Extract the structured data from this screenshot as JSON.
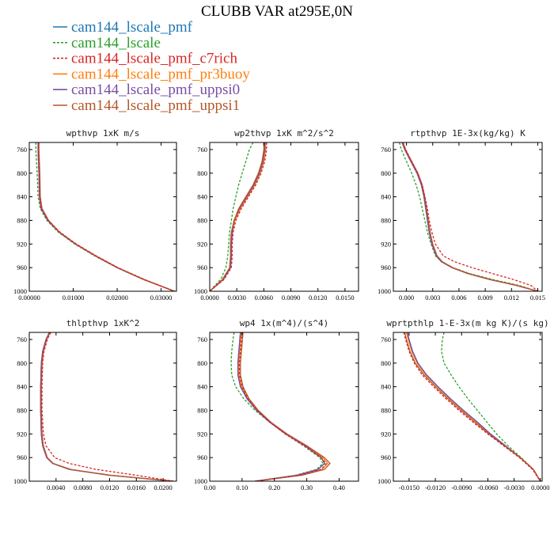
{
  "title": "CLUBB VAR at295E,0N",
  "legend": [
    {
      "label": "cam144_lscale_pmf",
      "color": "#1f77b4",
      "dash": false
    },
    {
      "label": "cam144_lscale",
      "color": "#2ca02c",
      "dash": true
    },
    {
      "label": "cam144_lscale_pmf_c7rich",
      "color": "#d62728",
      "dash": true
    },
    {
      "label": "cam144_lscale_pmf_pr3buoy",
      "color": "#ff7f0e",
      "dash": false
    },
    {
      "label": "cam144_lscale_pmf_uppsi0",
      "color": "#7b4ea3",
      "dash": false
    },
    {
      "label": "cam144_lscale_pmf_uppsi1",
      "color": "#b5572a",
      "dash": false
    }
  ],
  "chart_data": [
    {
      "type": "line",
      "title": "wpthvp  1xK m/s",
      "xlim": [
        0,
        0.0335
      ],
      "ylim": [
        1000,
        748
      ],
      "x_ticks": [
        "0.00000",
        "0.01000",
        "0.02000",
        "0.03000"
      ],
      "x_tick_values": [
        0,
        0.01,
        0.02,
        0.03
      ],
      "y_ticks": [
        "760",
        "800",
        "840",
        "880",
        "920",
        "960",
        "1000"
      ],
      "y_tick_values": [
        760,
        800,
        840,
        880,
        920,
        960,
        1000
      ],
      "y": [
        748,
        760,
        800,
        840,
        860,
        880,
        900,
        920,
        940,
        960,
        980,
        1000
      ],
      "series": [
        {
          "x": [
            0.002,
            0.002,
            0.0022,
            0.0023,
            0.0027,
            0.0042,
            0.0068,
            0.0105,
            0.015,
            0.02,
            0.026,
            0.033
          ]
        },
        {
          "x": [
            0.0015,
            0.0015,
            0.0018,
            0.002,
            0.0025,
            0.004,
            0.0066,
            0.0103,
            0.0148,
            0.0199,
            0.0259,
            0.0332
          ]
        },
        {
          "x": [
            0.0021,
            0.0021,
            0.0023,
            0.0024,
            0.0028,
            0.0043,
            0.007,
            0.0107,
            0.0152,
            0.0202,
            0.0262,
            0.033
          ]
        },
        {
          "x": [
            0.002,
            0.002,
            0.0022,
            0.0023,
            0.0027,
            0.0042,
            0.0068,
            0.0105,
            0.015,
            0.02,
            0.026,
            0.033
          ]
        },
        {
          "x": [
            0.002,
            0.002,
            0.0022,
            0.0023,
            0.0027,
            0.0042,
            0.0068,
            0.0105,
            0.015,
            0.02,
            0.026,
            0.033
          ]
        },
        {
          "x": [
            0.0022,
            0.0022,
            0.0024,
            0.0025,
            0.0029,
            0.0044,
            0.0069,
            0.0106,
            0.0151,
            0.0201,
            0.0261,
            0.033
          ]
        }
      ]
    },
    {
      "type": "line",
      "title": "wp2thvp  1xK m^2/s^2",
      "xlim": [
        0,
        0.0165
      ],
      "ylim": [
        1000,
        748
      ],
      "x_ticks": [
        "0.0000",
        "0.0030",
        "0.0060",
        "0.0090",
        "0.0120",
        "0.0150"
      ],
      "x_tick_values": [
        0,
        0.003,
        0.006,
        0.009,
        0.012,
        0.015
      ],
      "y_ticks": [
        "760",
        "800",
        "840",
        "880",
        "920",
        "960",
        "1000"
      ],
      "y_tick_values": [
        760,
        800,
        840,
        880,
        920,
        960,
        1000
      ],
      "y": [
        748,
        760,
        780,
        800,
        820,
        840,
        860,
        880,
        900,
        920,
        940,
        960,
        980,
        1000
      ],
      "series": [
        {
          "x": [
            0.0061,
            0.0061,
            0.0059,
            0.0055,
            0.0049,
            0.0041,
            0.0033,
            0.0027,
            0.0025,
            0.0024,
            0.0024,
            0.0023,
            0.0015,
            0.0
          ]
        },
        {
          "x": [
            0.0048,
            0.0044,
            0.004,
            0.0036,
            0.0032,
            0.0029,
            0.0026,
            0.0024,
            0.0022,
            0.0021,
            0.002,
            0.0018,
            0.0012,
            0.0
          ]
        },
        {
          "x": [
            0.0063,
            0.0063,
            0.0061,
            0.0057,
            0.0051,
            0.0043,
            0.0035,
            0.0029,
            0.0026,
            0.0025,
            0.0025,
            0.0024,
            0.0016,
            0.0
          ]
        },
        {
          "x": [
            0.0062,
            0.0062,
            0.006,
            0.0056,
            0.005,
            0.0042,
            0.0034,
            0.0028,
            0.0025,
            0.0024,
            0.0024,
            0.0023,
            0.0015,
            0.0
          ]
        },
        {
          "x": [
            0.0061,
            0.0061,
            0.0059,
            0.0055,
            0.0049,
            0.0041,
            0.0033,
            0.0027,
            0.0025,
            0.0024,
            0.0024,
            0.0023,
            0.0015,
            0.0
          ]
        },
        {
          "x": [
            0.006,
            0.006,
            0.0058,
            0.0054,
            0.0048,
            0.004,
            0.0032,
            0.0027,
            0.0024,
            0.0023,
            0.0023,
            0.0022,
            0.0014,
            0.0
          ]
        }
      ]
    },
    {
      "type": "line",
      "title": "rtpthvp  1E-3x(kg/kg) K",
      "xlim": [
        -0.0015,
        0.0155
      ],
      "ylim": [
        1000,
        748
      ],
      "x_ticks": [
        "0.000",
        "0.003",
        "0.006",
        "0.009",
        "0.012",
        "0.015"
      ],
      "x_tick_values": [
        0,
        0.003,
        0.006,
        0.009,
        0.012,
        0.015
      ],
      "y_ticks": [
        "760",
        "800",
        "840",
        "880",
        "920",
        "960",
        "1000"
      ],
      "y_tick_values": [
        760,
        800,
        840,
        880,
        920,
        960,
        1000
      ],
      "y": [
        748,
        760,
        780,
        800,
        820,
        840,
        860,
        880,
        900,
        920,
        940,
        950,
        960,
        970,
        980,
        990,
        1000
      ],
      "series": [
        {
          "x": [
            -0.0005,
            -0.0002,
            0.0005,
            0.0012,
            0.0017,
            0.002,
            0.0022,
            0.0024,
            0.0026,
            0.0029,
            0.0034,
            0.004,
            0.0052,
            0.007,
            0.0095,
            0.0125,
            0.015
          ]
        },
        {
          "x": [
            -0.0008,
            -0.0006,
            0.0,
            0.0006,
            0.0011,
            0.0015,
            0.0018,
            0.0021,
            0.0024,
            0.0028,
            0.0033,
            0.004,
            0.0053,
            0.0072,
            0.0098,
            0.0128,
            0.015
          ]
        },
        {
          "x": [
            -0.0004,
            -0.0001,
            0.0006,
            0.0013,
            0.0018,
            0.0021,
            0.0024,
            0.0026,
            0.0029,
            0.0033,
            0.0042,
            0.0055,
            0.0075,
            0.0098,
            0.0122,
            0.0142,
            0.015
          ]
        },
        {
          "x": [
            -0.0005,
            -0.0002,
            0.0005,
            0.0012,
            0.0017,
            0.002,
            0.0022,
            0.0024,
            0.0026,
            0.0029,
            0.0034,
            0.004,
            0.0052,
            0.007,
            0.0095,
            0.0125,
            0.015
          ]
        },
        {
          "x": [
            -0.0005,
            -0.0002,
            0.0005,
            0.0012,
            0.0017,
            0.002,
            0.0022,
            0.0024,
            0.0026,
            0.0029,
            0.0034,
            0.004,
            0.0052,
            0.007,
            0.0095,
            0.0125,
            0.015
          ]
        },
        {
          "x": [
            -0.0004,
            -0.0001,
            0.0006,
            0.0013,
            0.0018,
            0.0021,
            0.0023,
            0.0025,
            0.0027,
            0.003,
            0.0035,
            0.0041,
            0.0053,
            0.0071,
            0.0096,
            0.0126,
            0.015
          ]
        }
      ]
    },
    {
      "type": "line",
      "title": "thlpthvp  1xK^2",
      "xlim": [
        0,
        0.022
      ],
      "ylim": [
        1000,
        748
      ],
      "x_ticks": [
        "0.0040",
        "0.0080",
        "0.0120",
        "0.0160",
        "0.0200"
      ],
      "x_tick_values": [
        0.004,
        0.008,
        0.012,
        0.016,
        0.02
      ],
      "y_ticks": [
        "760",
        "800",
        "840",
        "880",
        "920",
        "960",
        "1000"
      ],
      "y_tick_values": [
        760,
        800,
        840,
        880,
        920,
        960,
        1000
      ],
      "y": [
        748,
        760,
        780,
        800,
        840,
        880,
        920,
        940,
        960,
        970,
        980,
        990,
        1000
      ],
      "series": [
        {
          "x": [
            0.003,
            0.0025,
            0.002,
            0.0018,
            0.0017,
            0.0017,
            0.0018,
            0.002,
            0.0026,
            0.0035,
            0.006,
            0.012,
            0.0215
          ]
        },
        {
          "x": [
            0.003,
            0.0025,
            0.002,
            0.0018,
            0.0017,
            0.0017,
            0.0018,
            0.002,
            0.0026,
            0.0035,
            0.006,
            0.012,
            0.0215
          ]
        },
        {
          "x": [
            0.0032,
            0.0027,
            0.0022,
            0.002,
            0.0019,
            0.0019,
            0.0021,
            0.0025,
            0.0038,
            0.006,
            0.01,
            0.016,
            0.0215
          ]
        },
        {
          "x": [
            0.003,
            0.0025,
            0.002,
            0.0018,
            0.0017,
            0.0017,
            0.0018,
            0.002,
            0.0026,
            0.0035,
            0.006,
            0.012,
            0.0215
          ]
        },
        {
          "x": [
            0.003,
            0.0025,
            0.002,
            0.0018,
            0.0017,
            0.0017,
            0.0018,
            0.002,
            0.0026,
            0.0035,
            0.006,
            0.012,
            0.0215
          ]
        },
        {
          "x": [
            0.0031,
            0.0026,
            0.0021,
            0.0019,
            0.0018,
            0.0018,
            0.0019,
            0.0021,
            0.0027,
            0.0036,
            0.0062,
            0.0122,
            0.0215
          ]
        }
      ]
    },
    {
      "type": "line",
      "title": "wp4  1x(m^4)/(s^4)",
      "xlim": [
        0,
        0.46
      ],
      "ylim": [
        1000,
        748
      ],
      "x_ticks": [
        "0.00",
        "0.10",
        "0.20",
        "0.30",
        "0.40"
      ],
      "x_tick_values": [
        0,
        0.1,
        0.2,
        0.3,
        0.4
      ],
      "y_ticks": [
        "760",
        "800",
        "840",
        "880",
        "920",
        "960",
        "1000"
      ],
      "y_tick_values": [
        760,
        800,
        840,
        880,
        920,
        960,
        1000
      ],
      "y": [
        748,
        760,
        780,
        800,
        820,
        840,
        860,
        880,
        900,
        920,
        940,
        960,
        970,
        980,
        990,
        1000
      ],
      "series": [
        {
          "x": [
            0.095,
            0.093,
            0.09,
            0.087,
            0.087,
            0.095,
            0.115,
            0.145,
            0.185,
            0.235,
            0.295,
            0.345,
            0.355,
            0.335,
            0.27,
            0.14
          ]
        },
        {
          "x": [
            0.075,
            0.072,
            0.068,
            0.066,
            0.068,
            0.08,
            0.105,
            0.14,
            0.185,
            0.235,
            0.29,
            0.34,
            0.35,
            0.33,
            0.265,
            0.14
          ]
        },
        {
          "x": [
            0.1,
            0.098,
            0.095,
            0.092,
            0.092,
            0.1,
            0.118,
            0.147,
            0.186,
            0.233,
            0.29,
            0.345,
            0.36,
            0.345,
            0.28,
            0.14
          ]
        },
        {
          "x": [
            0.098,
            0.096,
            0.093,
            0.09,
            0.09,
            0.098,
            0.117,
            0.147,
            0.187,
            0.237,
            0.297,
            0.35,
            0.365,
            0.348,
            0.28,
            0.14
          ]
        },
        {
          "x": [
            0.095,
            0.093,
            0.09,
            0.087,
            0.087,
            0.095,
            0.115,
            0.145,
            0.185,
            0.235,
            0.295,
            0.345,
            0.355,
            0.335,
            0.27,
            0.14
          ]
        },
        {
          "x": [
            0.103,
            0.101,
            0.098,
            0.095,
            0.095,
            0.103,
            0.121,
            0.15,
            0.189,
            0.239,
            0.3,
            0.355,
            0.372,
            0.355,
            0.285,
            0.14
          ]
        }
      ]
    },
    {
      "type": "line",
      "title": "wprtpthlp  1-E-3x(m kg K)/(s kg)",
      "xlim": [
        -0.0168,
        0.0002
      ],
      "ylim": [
        1000,
        748
      ],
      "x_ticks": [
        "-0.0150",
        "-0.0120",
        "-0.0090",
        "-0.0060",
        "-0.0030",
        "0.0000"
      ],
      "x_tick_values": [
        -0.015,
        -0.012,
        -0.009,
        -0.006,
        -0.003,
        0
      ],
      "y_ticks": [
        "760",
        "800",
        "840",
        "880",
        "920",
        "960",
        "1000"
      ],
      "y_tick_values": [
        760,
        800,
        840,
        880,
        920,
        960,
        1000
      ],
      "y": [
        748,
        760,
        780,
        800,
        820,
        840,
        860,
        880,
        900,
        920,
        940,
        960,
        980,
        1000
      ],
      "series": [
        {
          "x": [
            -0.0152,
            -0.015,
            -0.0146,
            -0.014,
            -0.013,
            -0.0117,
            -0.0103,
            -0.0088,
            -0.0072,
            -0.0057,
            -0.004,
            -0.0023,
            -0.0008,
            0.0
          ]
        },
        {
          "x": [
            -0.011,
            -0.0112,
            -0.0113,
            -0.011,
            -0.0102,
            -0.0093,
            -0.0083,
            -0.0072,
            -0.0061,
            -0.005,
            -0.0037,
            -0.0022,
            -0.0008,
            0.0
          ]
        },
        {
          "x": [
            -0.0156,
            -0.0154,
            -0.015,
            -0.0144,
            -0.0135,
            -0.0122,
            -0.0108,
            -0.0093,
            -0.0077,
            -0.006,
            -0.0042,
            -0.0024,
            -0.0009,
            0.0
          ]
        },
        {
          "x": [
            -0.0153,
            -0.0151,
            -0.0147,
            -0.0141,
            -0.0131,
            -0.0118,
            -0.0104,
            -0.0089,
            -0.0073,
            -0.0058,
            -0.0041,
            -0.0023,
            -0.0008,
            0.0
          ]
        },
        {
          "x": [
            -0.0152,
            -0.015,
            -0.0146,
            -0.014,
            -0.013,
            -0.0117,
            -0.0103,
            -0.0088,
            -0.0072,
            -0.0057,
            -0.004,
            -0.0023,
            -0.0008,
            0.0
          ]
        },
        {
          "x": [
            -0.0155,
            -0.0153,
            -0.0149,
            -0.0143,
            -0.0133,
            -0.012,
            -0.0106,
            -0.0091,
            -0.0075,
            -0.0059,
            -0.0041,
            -0.0023,
            -0.0008,
            0.0
          ]
        }
      ]
    }
  ]
}
